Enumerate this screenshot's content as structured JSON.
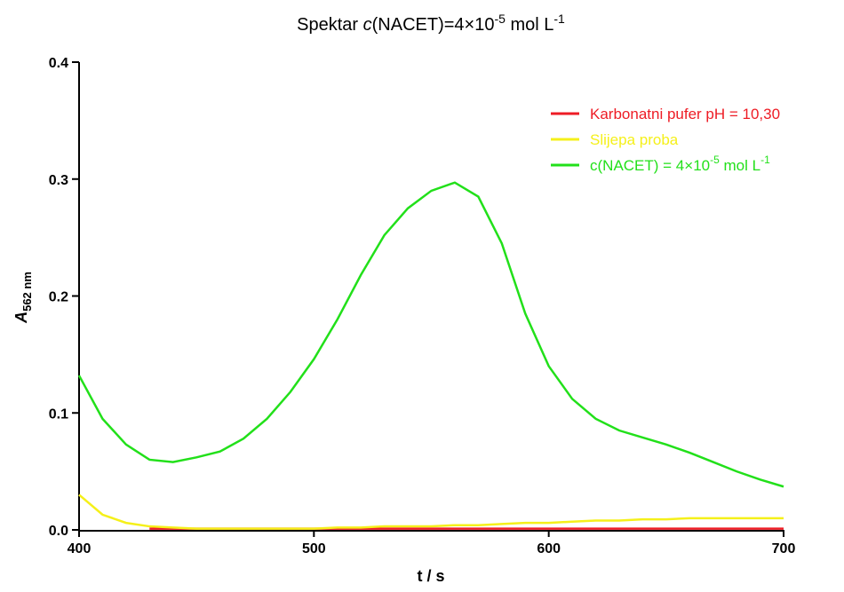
{
  "chart_data": {
    "type": "line",
    "title": [
      "Spektar ",
      "c",
      "(NACET)=4×10",
      "-5",
      " mol L",
      "-1"
    ],
    "x_label": "t / s",
    "y_label": [
      "A",
      "562 nm"
    ],
    "x": [
      400,
      410,
      420,
      430,
      440,
      450,
      460,
      470,
      480,
      490,
      500,
      510,
      520,
      530,
      540,
      550,
      560,
      570,
      580,
      590,
      600,
      610,
      620,
      630,
      640,
      650,
      660,
      670,
      680,
      690,
      700
    ],
    "series": [
      {
        "name": [
          "Karbonatni pufer pH = 10,30"
        ],
        "color": "#ee1c25",
        "values": [
          null,
          null,
          null,
          0.001,
          0.001,
          0.001,
          0.001,
          0.001,
          0.001,
          0.001,
          0.001,
          0.001,
          0.001,
          0.001,
          0.001,
          0.001,
          0.001,
          0.001,
          0.001,
          0.001,
          0.001,
          0.001,
          0.001,
          0.001,
          0.001,
          0.001,
          0.001,
          0.001,
          0.001,
          0.001,
          0.001
        ]
      },
      {
        "name": [
          "Slijepa proba"
        ],
        "color": "#f5f01a",
        "values": [
          0.03,
          0.013,
          0.006,
          0.003,
          0.002,
          0.001,
          0.001,
          0.001,
          0.001,
          0.001,
          0.001,
          0.002,
          0.002,
          0.003,
          0.003,
          0.003,
          0.004,
          0.004,
          0.005,
          0.006,
          0.006,
          0.007,
          0.008,
          0.008,
          0.009,
          0.009,
          0.01,
          0.01,
          0.01,
          0.01,
          0.01
        ]
      },
      {
        "name": [
          "c(NACET) = 4×10",
          "-5",
          " mol L",
          "-1"
        ],
        "color": "#22e01a",
        "values": [
          0.132,
          0.095,
          0.073,
          0.06,
          0.058,
          0.062,
          0.067,
          0.078,
          0.095,
          0.118,
          0.146,
          0.18,
          0.218,
          0.252,
          0.275,
          0.29,
          0.297,
          0.285,
          0.245,
          0.185,
          0.14,
          0.112,
          0.095,
          0.085,
          0.079,
          0.073,
          0.066,
          0.058,
          0.05,
          0.043,
          0.037
        ]
      }
    ],
    "xlim": [
      400,
      700
    ],
    "xticks": [
      400,
      500,
      600,
      700
    ],
    "ylim": [
      0,
      0.4
    ],
    "yticks": [
      {
        "value": 0,
        "label": "0.0"
      },
      0.1,
      0.2,
      0.3,
      0.4
    ],
    "legend": "upper-right"
  }
}
